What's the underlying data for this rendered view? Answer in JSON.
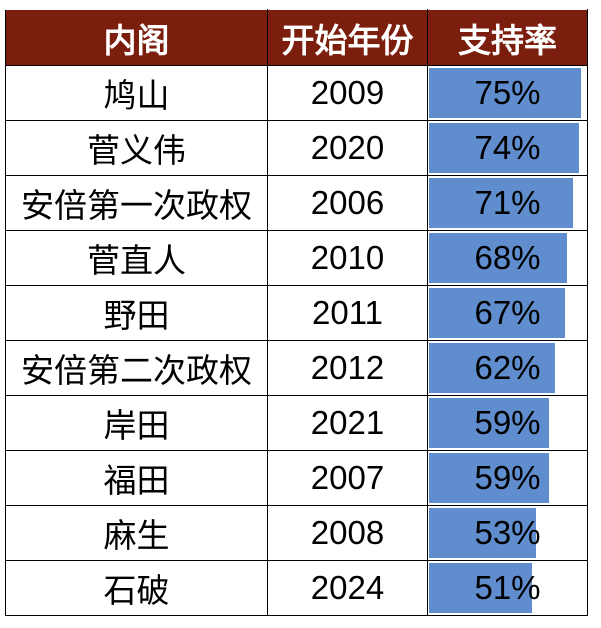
{
  "chart_data": {
    "type": "table",
    "columns": [
      "内阁",
      "开始年份",
      "支持率"
    ],
    "rows": [
      {
        "cabinet": "鸠山",
        "year": "2009",
        "approval": 75,
        "label": "75%"
      },
      {
        "cabinet": "菅义伟",
        "year": "2020",
        "approval": 74,
        "label": "74%"
      },
      {
        "cabinet": "安倍第一次政权",
        "year": "2006",
        "approval": 71,
        "label": "71%"
      },
      {
        "cabinet": "菅直人",
        "year": "2010",
        "approval": 68,
        "label": "68%"
      },
      {
        "cabinet": "野田",
        "year": "2011",
        "approval": 67,
        "label": "67%"
      },
      {
        "cabinet": "安倍第二次政权",
        "year": "2012",
        "approval": 62,
        "label": "62%"
      },
      {
        "cabinet": "岸田",
        "year": "2021",
        "approval": 59,
        "label": "59%"
      },
      {
        "cabinet": "福田",
        "year": "2007",
        "approval": 59,
        "label": "59%"
      },
      {
        "cabinet": "麻生",
        "year": "2008",
        "approval": 53,
        "label": "53%"
      },
      {
        "cabinet": "石破",
        "year": "2024",
        "approval": 51,
        "label": "51%"
      }
    ],
    "bar_scale_max": 75,
    "colors": {
      "header_bg": "#7b1e0d",
      "header_text": "#ffffff",
      "bar": "#5f8dcd",
      "border": "#000000"
    }
  }
}
